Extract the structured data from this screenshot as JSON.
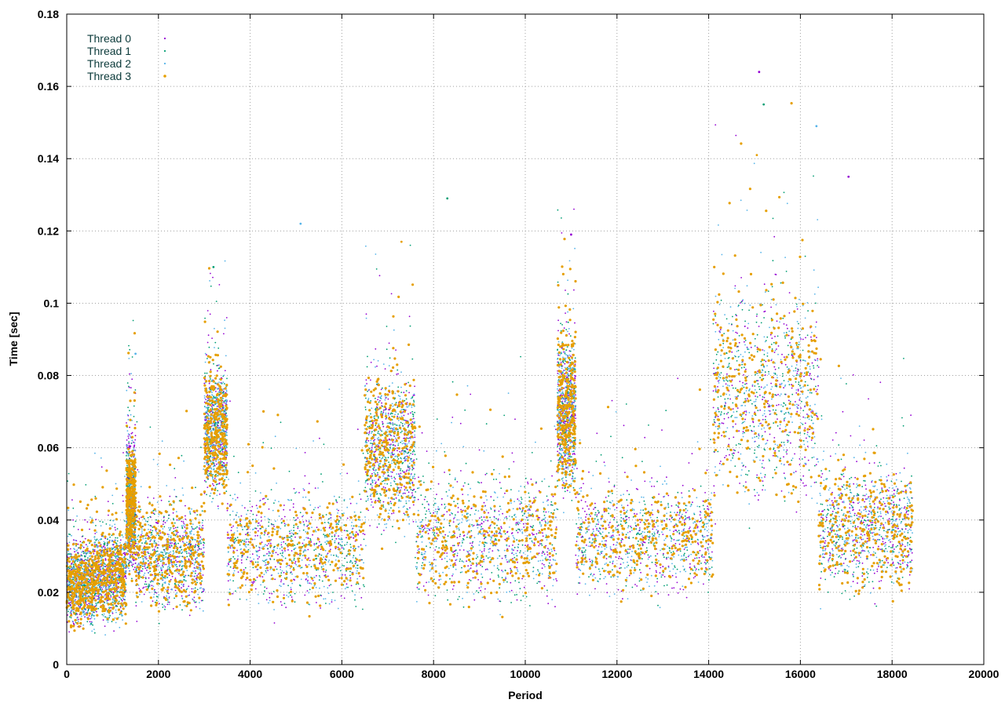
{
  "chart_data": {
    "type": "scatter",
    "title": "",
    "xlabel": "Period",
    "ylabel": "Time [sec]",
    "xlim": [
      0,
      20000
    ],
    "ylim": [
      0,
      0.18
    ],
    "xticks": [
      "0",
      "2000",
      "4000",
      "6000",
      "8000",
      "10000",
      "12000",
      "14000",
      "16000",
      "18000",
      "20000"
    ],
    "yticks": [
      "0",
      "0.02",
      "0.04",
      "0.06",
      "0.08",
      "0.1",
      "0.12",
      "0.14",
      "0.16",
      "0.18"
    ],
    "grid": true,
    "legend_position": "top-left",
    "x_extent": [
      0,
      18450
    ],
    "series": [
      {
        "name": "Thread 0",
        "color": "#9400d3",
        "marker": "dot"
      },
      {
        "name": "Thread 1",
        "color": "#009e73",
        "marker": "dot"
      },
      {
        "name": "Thread 2",
        "color": "#56b4e9",
        "marker": "dot"
      },
      {
        "name": "Thread 3",
        "color": "#e69f00",
        "marker": "dot"
      }
    ],
    "segments": [
      {
        "x": [
          0,
          600
        ],
        "y_center": 0.022,
        "y_spread": 0.015
      },
      {
        "x": [
          600,
          1300
        ],
        "y_center": 0.025,
        "y_spread": 0.018
      },
      {
        "x": [
          1300,
          1500
        ],
        "y_center": 0.045,
        "y_spread": 0.025
      },
      {
        "x": [
          1500,
          3000
        ],
        "y_center": 0.03,
        "y_spread": 0.02
      },
      {
        "x": [
          3000,
          3500
        ],
        "y_center": 0.065,
        "y_spread": 0.025
      },
      {
        "x": [
          3500,
          6500
        ],
        "y_center": 0.032,
        "y_spread": 0.022
      },
      {
        "x": [
          6500,
          7600
        ],
        "y_center": 0.06,
        "y_spread": 0.03
      },
      {
        "x": [
          7600,
          10700
        ],
        "y_center": 0.035,
        "y_spread": 0.025
      },
      {
        "x": [
          10700,
          11100
        ],
        "y_center": 0.07,
        "y_spread": 0.03
      },
      {
        "x": [
          11100,
          14100
        ],
        "y_center": 0.035,
        "y_spread": 0.022
      },
      {
        "x": [
          14100,
          16400
        ],
        "y_center": 0.075,
        "y_spread": 0.04
      },
      {
        "x": [
          16400,
          18450
        ],
        "y_center": 0.038,
        "y_spread": 0.025
      }
    ],
    "peaks": [
      {
        "x": 15100,
        "y": 0.164
      },
      {
        "x": 15200,
        "y": 0.155
      },
      {
        "x": 16350,
        "y": 0.149
      },
      {
        "x": 15050,
        "y": 0.141
      },
      {
        "x": 17050,
        "y": 0.135
      },
      {
        "x": 8300,
        "y": 0.129
      },
      {
        "x": 5100,
        "y": 0.122
      },
      {
        "x": 7300,
        "y": 0.117
      },
      {
        "x": 11000,
        "y": 0.119
      },
      {
        "x": 3200,
        "y": 0.11
      },
      {
        "x": 1500,
        "y": 0.086
      }
    ]
  }
}
